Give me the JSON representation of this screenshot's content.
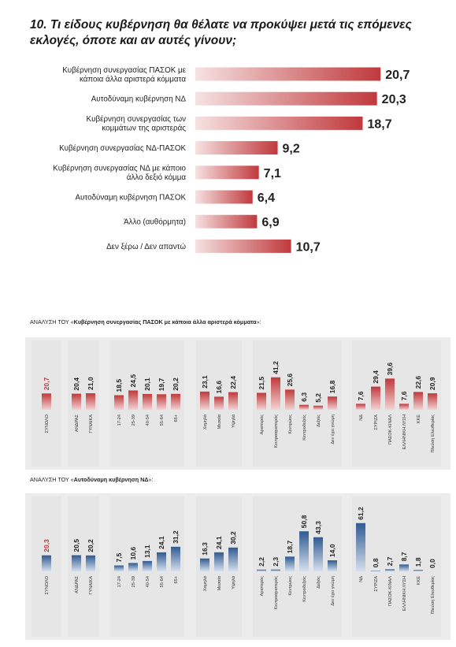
{
  "title": "10. Τι είδους κυβέρνηση θα θέλατε να προκύψει μετά τις επόμενες εκλογές, όποτε και αν αυτές γίνουν;",
  "colors": {
    "red_dark": "#c0393c",
    "red_light": "#f6e2e2",
    "blue_dark": "#2f5a91",
    "blue_light": "#e3eaf3",
    "band": "#ececec"
  },
  "chart_data": [
    {
      "type": "bar",
      "orientation": "horizontal",
      "title": "",
      "categories": [
        [
          "Κυβέρνηση συνεργασίας ΠΑΣΟΚ με",
          "κάποια άλλα αριστερά κόμματα"
        ],
        [
          "Αυτοδύναμη κυβέρνηση ΝΔ"
        ],
        [
          "Κυβέρνηση συνεργασίας των",
          "κομμάτων της αριστεράς"
        ],
        [
          "Κυβέρνηση συνεργασίας ΝΔ-ΠΑΣΟΚ"
        ],
        [
          "Κυβέρνηση συνεργασίας ΝΔ με κάποιο",
          "άλλο δεξιό κόμμα"
        ],
        [
          "Αυτοδύναμη κυβέρνηση ΠΑΣΟΚ"
        ],
        [
          "Άλλο (αυθόρμητα)"
        ],
        [
          "Δεν ξέρω / Δεν απαντώ"
        ]
      ],
      "values": [
        20.7,
        20.3,
        18.7,
        9.2,
        7.1,
        6.4,
        6.9,
        10.7
      ],
      "value_labels": [
        "20,7",
        "20,3",
        "18,7",
        "9,2",
        "7,1",
        "6,4",
        "6,9",
        "10,7"
      ],
      "xlim": [
        0,
        22
      ]
    },
    {
      "type": "bar",
      "orientation": "vertical",
      "title_prefix": "ΑΝΑΛΥΣΗ ΤΟΥ «",
      "title_bold": "Κυβέρνηση συνεργασίας ΠΑΣΟΚ με κάποια άλλα αριστερά κόμματα",
      "title_suffix": "»:",
      "groups": [
        {
          "categories": [
            "ΣΥΝΟΛΟ"
          ],
          "values": [
            20.7
          ],
          "value_labels": [
            "20,7"
          ]
        },
        {
          "categories": [
            "ΑΝΔΡΑΣ",
            "ΓΥΝΑΙΚΑ"
          ],
          "values": [
            20.4,
            21.0
          ],
          "value_labels": [
            "20,4",
            "21,0"
          ]
        },
        {
          "categories": [
            "17-24",
            "25-39",
            "40-54",
            "55-64",
            "65+"
          ],
          "values": [
            18.5,
            24.5,
            20.1,
            19.7,
            20.2
          ],
          "value_labels": [
            "18,5",
            "24,5",
            "20,1",
            "19,7",
            "20,2"
          ]
        },
        {
          "categories": [
            "Χαμηλά",
            "Μεσαία",
            "Υψηλά"
          ],
          "values": [
            23.1,
            16.6,
            22.4
          ],
          "value_labels": [
            "23,1",
            "16,6",
            "22,4"
          ]
        },
        {
          "categories": [
            "Αριστερός",
            "Κεντροαριστερός",
            "Κεντρώος",
            "Κεντροδεξιός",
            "Δεξιός",
            "Δεν έχει γνώμη"
          ],
          "values": [
            21.5,
            41.2,
            25.6,
            6.3,
            5.2,
            16.8
          ],
          "value_labels": [
            "21,5",
            "41,2",
            "25,6",
            "6,3",
            "5,2",
            "16,8"
          ]
        },
        {
          "categories": [
            "ΝΔ",
            "ΣΥΡΙΖΑ",
            "ΠΑΣΟΚ-ΚΙΝΑΛ",
            "ΕΛΛΗΝΙΚΗ ΛΥΣΗ",
            "ΚΚΕ",
            "Πλεύση Ελευθερίας"
          ],
          "values": [
            7.6,
            29.4,
            39.6,
            7.6,
            22.6,
            20.9
          ],
          "value_labels": [
            "7,6",
            "29,4",
            "39,6",
            "7,6",
            "22,6",
            "20,9"
          ]
        }
      ],
      "ylim": [
        0,
        70
      ]
    },
    {
      "type": "bar",
      "orientation": "vertical",
      "title_prefix": "ΑΝΑΛΥΣΗ ΤΟΥ «",
      "title_bold": "Αυτοδύναμη κυβέρνηση ΝΔ",
      "title_suffix": "»:",
      "groups": [
        {
          "categories": [
            "ΣΥΝΟΛΟ"
          ],
          "values": [
            20.3
          ],
          "value_labels": [
            "20,3"
          ]
        },
        {
          "categories": [
            "ΑΝΔΡΑΣ",
            "ΓΥΝΑΙΚΑ"
          ],
          "values": [
            20.5,
            20.2
          ],
          "value_labels": [
            "20,5",
            "20,2"
          ]
        },
        {
          "categories": [
            "17-24",
            "25-39",
            "40-54",
            "55-64",
            "65+"
          ],
          "values": [
            7.5,
            10.6,
            13.1,
            24.1,
            31.2
          ],
          "value_labels": [
            "7,5",
            "10,6",
            "13,1",
            "24,1",
            "31,2"
          ]
        },
        {
          "categories": [
            "Χαμηλά",
            "Μεσαία",
            "Υψηλά"
          ],
          "values": [
            16.3,
            24.1,
            30.2
          ],
          "value_labels": [
            "16,3",
            "24,1",
            "30,2"
          ]
        },
        {
          "categories": [
            "Αριστερός",
            "Κεντροαριστερός",
            "Κεντρώος",
            "Κεντροδεξιός",
            "Δεξιός",
            "Δεν έχει γνώμη"
          ],
          "values": [
            2.2,
            2.3,
            18.7,
            50.8,
            43.3,
            14.0
          ],
          "value_labels": [
            "2,2",
            "2,3",
            "18,7",
            "50,8",
            "43,3",
            "14,0"
          ]
        },
        {
          "categories": [
            "ΝΔ",
            "ΣΥΡΙΖΑ",
            "ΠΑΣΟΚ-ΚΙΝΑΛ",
            "ΕΛΛΗΝΙΚΗ ΛΥΣΗ",
            "ΚΚΕ",
            "Πλεύση Ελευθερίας"
          ],
          "values": [
            61.2,
            0.8,
            2.7,
            8.7,
            1.8,
            0.0
          ],
          "value_labels": [
            "61,2",
            "0,8",
            "2,7",
            "8,7",
            "1,8",
            "0,0"
          ]
        }
      ],
      "ylim": [
        0,
        70
      ]
    }
  ]
}
